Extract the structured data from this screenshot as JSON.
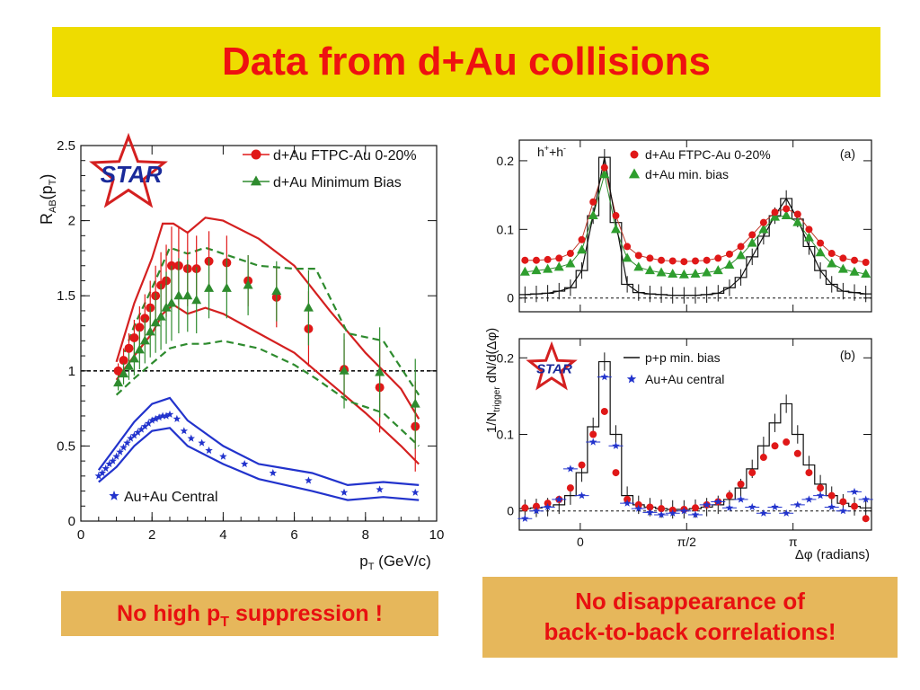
{
  "slide": {
    "title": "Data from d+Au collisions",
    "note_left_prefix": "No high p",
    "note_left_sub": "T",
    "note_left_suffix": " suppression !",
    "note_right_line1": "No disappearance of",
    "note_right_line2": "back-to-back correlations!",
    "colors": {
      "banner": "#eedc00",
      "title": "#ee1111",
      "note_bg": "#e6b75b",
      "note_text": "#e81010"
    }
  },
  "chart_data": [
    {
      "type": "scatter",
      "name": "RAB vs pT",
      "ylabel_main": "R",
      "ylabel_sub": "AB",
      "ylabel_tail": "(p",
      "ylabel_sub2": "T",
      "ylabel_end": ")",
      "xlabel_main": "p",
      "xlabel_sub": "T",
      "xlabel_tail": " (GeV/c)",
      "xlim": [
        0,
        10
      ],
      "ylim": [
        0,
        2.5
      ],
      "xticks": [
        "0",
        "2",
        "4",
        "6",
        "8",
        "10"
      ],
      "yticks": [
        "0",
        "0.5",
        "1",
        "1.5",
        "2",
        "2.5"
      ],
      "reference_line": 1,
      "logo": "STAR",
      "legend": [
        "d+Au FTPC-Au 0-20%",
        "d+Au Minimum Bias"
      ],
      "legend_bottom": "Au+Au Central",
      "series": [
        {
          "name": "d+Au FTPC-Au 0-20%",
          "marker": "circle",
          "color": "#e01818",
          "x": [
            1.05,
            1.2,
            1.35,
            1.5,
            1.65,
            1.8,
            1.95,
            2.1,
            2.25,
            2.4,
            2.55,
            2.75,
            3.0,
            3.25,
            3.6,
            4.1,
            4.7,
            5.5,
            6.4,
            7.4,
            8.4,
            9.4
          ],
          "y": [
            1.0,
            1.07,
            1.15,
            1.22,
            1.29,
            1.35,
            1.42,
            1.5,
            1.57,
            1.6,
            1.7,
            1.7,
            1.68,
            1.68,
            1.73,
            1.72,
            1.6,
            1.49,
            1.28,
            1.01,
            0.89,
            0.63
          ],
          "err": [
            0.05,
            0.08,
            0.1,
            0.12,
            0.14,
            0.16,
            0.18,
            0.2,
            0.22,
            0.24,
            0.26,
            0.26,
            0.25,
            0.22,
            0.2,
            0.18,
            0.17,
            0.2,
            0.25,
            0.2,
            0.3,
            0.3
          ]
        },
        {
          "name": "d+Au Minimum Bias",
          "marker": "triangle",
          "color": "#2e8b2e",
          "x": [
            1.05,
            1.2,
            1.35,
            1.5,
            1.65,
            1.8,
            1.95,
            2.1,
            2.25,
            2.4,
            2.55,
            2.75,
            3.0,
            3.25,
            3.6,
            4.1,
            4.7,
            5.5,
            6.4,
            7.4,
            8.4,
            9.4
          ],
          "y": [
            0.92,
            0.98,
            1.03,
            1.08,
            1.14,
            1.2,
            1.26,
            1.32,
            1.36,
            1.42,
            1.45,
            1.5,
            1.5,
            1.47,
            1.55,
            1.55,
            1.57,
            1.53,
            1.42,
            1.0,
            0.99,
            0.78
          ],
          "err": [
            0.05,
            0.07,
            0.09,
            0.11,
            0.13,
            0.15,
            0.17,
            0.2,
            0.22,
            0.24,
            0.25,
            0.25,
            0.24,
            0.22,
            0.2,
            0.2,
            0.2,
            0.2,
            0.25,
            0.25,
            0.3,
            0.3
          ]
        },
        {
          "name": "Au+Au Central",
          "marker": "star",
          "color": "#2233cc",
          "x": [
            0.5,
            0.6,
            0.7,
            0.8,
            0.9,
            1.0,
            1.1,
            1.2,
            1.3,
            1.4,
            1.5,
            1.6,
            1.7,
            1.8,
            1.9,
            2.0,
            2.1,
            2.2,
            2.3,
            2.4,
            2.5,
            2.7,
            2.9,
            3.1,
            3.4,
            3.6,
            4.0,
            4.6,
            5.4,
            6.4,
            7.4,
            8.4,
            9.4
          ],
          "y": [
            0.3,
            0.32,
            0.35,
            0.38,
            0.4,
            0.43,
            0.46,
            0.49,
            0.52,
            0.55,
            0.57,
            0.59,
            0.61,
            0.63,
            0.65,
            0.67,
            0.68,
            0.69,
            0.7,
            0.7,
            0.71,
            0.68,
            0.6,
            0.55,
            0.52,
            0.47,
            0.43,
            0.38,
            0.32,
            0.27,
            0.19,
            0.21,
            0.19
          ],
          "err": []
        }
      ],
      "bands": [
        {
          "color": "#d42020",
          "style": "solid",
          "x": [
            1.0,
            1.5,
            2.0,
            2.3,
            2.6,
            3.0,
            3.5,
            4.0,
            5.0,
            6.0,
            7.0,
            8.0,
            9.0,
            9.5
          ],
          "upper": [
            1.06,
            1.45,
            1.75,
            1.98,
            1.98,
            1.92,
            2.02,
            2.0,
            1.88,
            1.7,
            1.4,
            1.12,
            0.88,
            0.68
          ],
          "lower": [
            0.94,
            1.1,
            1.25,
            1.38,
            1.44,
            1.38,
            1.42,
            1.38,
            1.25,
            1.12,
            0.92,
            0.72,
            0.5,
            0.38
          ]
        },
        {
          "color": "#2e8b2e",
          "style": "dashed",
          "x": [
            1.0,
            1.5,
            2.0,
            2.5,
            3.0,
            3.5,
            4.0,
            5.0,
            6.0,
            6.6,
            7.5,
            8.5,
            9.5
          ],
          "upper": [
            0.98,
            1.3,
            1.55,
            1.82,
            1.78,
            1.82,
            1.78,
            1.7,
            1.68,
            1.68,
            1.25,
            1.2,
            0.84
          ],
          "lower": [
            0.84,
            0.95,
            1.05,
            1.15,
            1.18,
            1.18,
            1.2,
            1.15,
            1.04,
            0.95,
            0.8,
            0.72,
            0.5
          ]
        },
        {
          "color": "#2233cc",
          "style": "solid",
          "x": [
            0.5,
            1.0,
            1.5,
            2.0,
            2.5,
            3.0,
            4.0,
            5.0,
            6.5,
            7.5,
            8.5,
            9.5
          ],
          "upper": [
            0.34,
            0.5,
            0.66,
            0.78,
            0.82,
            0.67,
            0.5,
            0.38,
            0.32,
            0.24,
            0.26,
            0.24
          ],
          "lower": [
            0.26,
            0.36,
            0.5,
            0.6,
            0.62,
            0.5,
            0.38,
            0.28,
            0.2,
            0.14,
            0.16,
            0.14
          ]
        }
      ]
    },
    {
      "type": "scatter",
      "name": "azimuthal correlations",
      "ylabel": "1/N",
      "ylabel_sub": "trigger",
      "ylabel_tail": " dN/d(Δφ)",
      "xlabel": "Δφ (radians)",
      "xticks": [
        "0",
        "π/2",
        "π"
      ],
      "xtick_values": [
        0,
        1.5708,
        3.1416
      ],
      "xlim": [
        -0.9,
        4.3
      ],
      "top": {
        "tag": "(a)",
        "label_main": "h",
        "label_sup1": "+",
        "label_mid": "+h",
        "label_sup2": "-",
        "ylim": [
          -0.02,
          0.23
        ],
        "yticks": [
          "0",
          "0.1",
          "0.2"
        ],
        "legend": [
          "d+Au FTPC-Au 0-20%",
          "d+Au min. bias"
        ],
        "red": [
          0.055,
          0.055,
          0.056,
          0.058,
          0.065,
          0.085,
          0.14,
          0.19,
          0.12,
          0.075,
          0.062,
          0.058,
          0.055,
          0.054,
          0.053,
          0.054,
          0.055,
          0.058,
          0.064,
          0.075,
          0.092,
          0.11,
          0.125,
          0.13,
          0.122,
          0.1,
          0.08,
          0.065,
          0.058,
          0.055,
          0.052
        ],
        "green": [
          0.038,
          0.04,
          0.042,
          0.045,
          0.05,
          0.07,
          0.12,
          0.18,
          0.1,
          0.058,
          0.045,
          0.04,
          0.037,
          0.035,
          0.034,
          0.035,
          0.037,
          0.04,
          0.048,
          0.062,
          0.08,
          0.1,
          0.118,
          0.12,
          0.11,
          0.088,
          0.066,
          0.05,
          0.042,
          0.038,
          0.035
        ],
        "hist": [
          0.005,
          0.006,
          0.007,
          0.01,
          0.015,
          0.04,
          0.12,
          0.205,
          0.11,
          0.02,
          0.008,
          0.006,
          0.005,
          0.004,
          0.004,
          0.004,
          0.005,
          0.007,
          0.015,
          0.03,
          0.06,
          0.09,
          0.12,
          0.145,
          0.115,
          0.075,
          0.04,
          0.02,
          0.01,
          0.008,
          0.006
        ]
      },
      "bottom": {
        "tag": "(b)",
        "logo": "STAR",
        "ylim": [
          -0.025,
          0.225
        ],
        "yticks": [
          "0",
          "0.1",
          "0.2"
        ],
        "legend": [
          "p+p min. bias",
          "Au+Au central"
        ],
        "hist": [
          0.003,
          0.004,
          0.005,
          0.008,
          0.02,
          0.05,
          0.11,
          0.195,
          0.1,
          0.02,
          0.008,
          0.005,
          0.003,
          0.002,
          0.002,
          0.003,
          0.005,
          0.008,
          0.015,
          0.03,
          0.055,
          0.085,
          0.115,
          0.14,
          0.1,
          0.06,
          0.035,
          0.02,
          0.01,
          0.006,
          0.004
        ],
        "red": [
          0.004,
          0.006,
          0.01,
          0.015,
          0.03,
          0.06,
          0.1,
          0.13,
          0.05,
          0.015,
          0.008,
          0.005,
          0.003,
          0.001,
          0.002,
          0.004,
          0.008,
          0.012,
          0.02,
          0.035,
          0.05,
          0.07,
          0.085,
          0.09,
          0.075,
          0.05,
          0.03,
          0.02,
          0.012,
          0.006,
          -0.01
        ],
        "blue": [
          -0.01,
          0.0,
          0.005,
          0.015,
          0.055,
          0.02,
          0.09,
          0.175,
          0.085,
          0.01,
          0.003,
          -0.002,
          -0.005,
          -0.003,
          0.0,
          -0.005,
          0.008,
          0.012,
          0.004,
          0.015,
          0.005,
          -0.003,
          0.005,
          -0.003,
          0.008,
          0.015,
          0.02,
          0.005,
          0.0,
          0.025,
          0.015
        ]
      }
    }
  ]
}
